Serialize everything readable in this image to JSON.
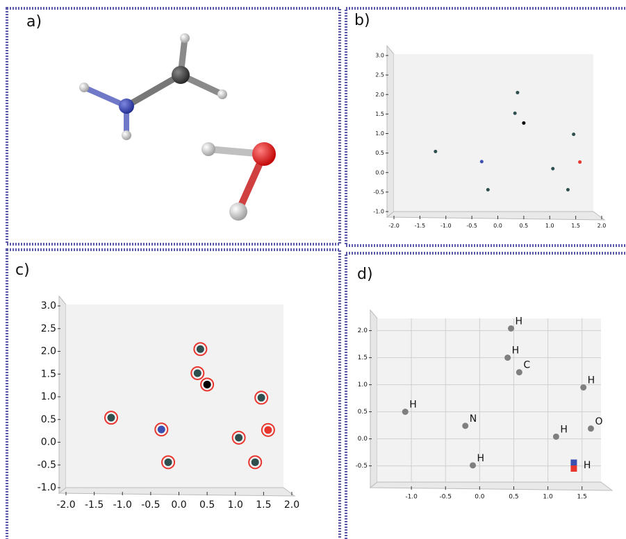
{
  "panels": [
    "a)",
    "b)",
    "c)",
    "d)"
  ],
  "chart_data": [
    {
      "type": "scatter",
      "x": [
        -1.2,
        -0.31,
        -0.19,
        0.38,
        0.33,
        0.5,
        1.46,
        1.06,
        1.58,
        1.35
      ],
      "y": [
        0.54,
        0.28,
        -0.44,
        2.05,
        1.52,
        1.27,
        0.98,
        0.1,
        0.27,
        -0.44
      ],
      "colors": [
        "#2f4f4f",
        "#3b4fb0",
        "#2f4f4f",
        "#2f4f4f",
        "#2f4f4f",
        "#000000",
        "#2f4f4f",
        "#2f4f4f",
        "#e8352e",
        "#2f4f4f"
      ],
      "xlim": [
        -2,
        2
      ],
      "ylim": [
        -1,
        3
      ],
      "xticks": [
        {
          "value": -2,
          "label": "-2.0"
        },
        {
          "value": -1.5,
          "label": "-1.5"
        },
        {
          "value": -1,
          "label": "-1.0"
        },
        {
          "value": -0.5,
          "label": "-0.5"
        },
        {
          "value": 0,
          "label": "0.0"
        },
        {
          "value": 0.5,
          "label": "0.5"
        },
        {
          "value": 1,
          "label": "1.0"
        },
        {
          "value": 1.5,
          "label": "1.5"
        },
        {
          "value": 2,
          "label": "2.0"
        }
      ],
      "yticks": [
        {
          "value": -1,
          "label": "-1.0"
        },
        {
          "value": -0.5,
          "label": "-0.5"
        },
        {
          "value": 0,
          "label": "0.0"
        },
        {
          "value": 0.5,
          "label": "0.5"
        },
        {
          "value": 1,
          "label": "1.0"
        },
        {
          "value": 1.5,
          "label": "1.5"
        },
        {
          "value": 2,
          "label": "2.0"
        },
        {
          "value": 2.5,
          "label": "2.5"
        },
        {
          "value": 3,
          "label": "3.0"
        }
      ],
      "grid": false
    },
    {
      "type": "scatter",
      "x": [
        -1.2,
        -0.31,
        -0.19,
        0.38,
        0.33,
        0.5,
        1.46,
        1.06,
        1.58,
        1.35
      ],
      "y": [
        0.54,
        0.28,
        -0.44,
        2.05,
        1.52,
        1.27,
        0.98,
        0.1,
        0.27,
        -0.44
      ],
      "colors": [
        "#2f4f4f",
        "#3b4fb0",
        "#2f4f4f",
        "#2f4f4f",
        "#2f4f4f",
        "#000000",
        "#2f4f4f",
        "#2f4f4f",
        "#e8352e",
        "#2f4f4f"
      ],
      "ring_color": "#e8352e",
      "xlim": [
        -2,
        2
      ],
      "ylim": [
        -1,
        3
      ],
      "xticks": [
        {
          "value": -2,
          "label": "-2.0"
        },
        {
          "value": -1.5,
          "label": "-1.5"
        },
        {
          "value": -1,
          "label": "-1.0"
        },
        {
          "value": -0.5,
          "label": "-0.5"
        },
        {
          "value": 0,
          "label": "0.0"
        },
        {
          "value": 0.5,
          "label": "0.5"
        },
        {
          "value": 1,
          "label": "1.0"
        },
        {
          "value": 1.5,
          "label": "1.5"
        },
        {
          "value": 2,
          "label": "2.0"
        }
      ],
      "yticks": [
        {
          "value": -1,
          "label": "-1.0"
        },
        {
          "value": -0.5,
          "label": "-0.5"
        },
        {
          "value": 0,
          "label": "0.0"
        },
        {
          "value": 0.5,
          "label": "0.5"
        },
        {
          "value": 1,
          "label": "1.0"
        },
        {
          "value": 1.5,
          "label": "1.5"
        },
        {
          "value": 2,
          "label": "2.0"
        },
        {
          "value": 2.5,
          "label": "2.5"
        },
        {
          "value": 3,
          "label": "3.0"
        }
      ],
      "grid": false
    },
    {
      "type": "scatter",
      "x": [
        0.46,
        0.41,
        0.58,
        1.52,
        -1.09,
        -0.21,
        1.12,
        1.63,
        -0.1
      ],
      "y": [
        2.04,
        1.5,
        1.23,
        0.95,
        0.5,
        0.24,
        0.04,
        0.19,
        -0.49
      ],
      "labels": [
        "H",
        "H",
        "C",
        "H",
        "H",
        "N",
        "H",
        "O",
        "H"
      ],
      "color": "#7f7f7f",
      "markers": {
        "x": [
          1.38,
          1.38
        ],
        "y": [
          -0.44,
          -0.55
        ],
        "colors": [
          "#3b4fb0",
          "#e8352e"
        ],
        "label": "H"
      },
      "xlim": [
        -1.5,
        1.9
      ],
      "ylim": [
        -0.8,
        2.2
      ],
      "xticks": [
        {
          "value": -1,
          "label": "-1.0"
        },
        {
          "value": -0.5,
          "label": "-0.5"
        },
        {
          "value": 0,
          "label": "0.0"
        },
        {
          "value": 0.5,
          "label": "0.5"
        },
        {
          "value": 1,
          "label": "1.0"
        },
        {
          "value": 1.5,
          "label": "1.5"
        }
      ],
      "yticks": [
        {
          "value": -0.5,
          "label": "-0.5"
        },
        {
          "value": 0,
          "label": "0.0"
        },
        {
          "value": 0.5,
          "label": "0.5"
        },
        {
          "value": 1,
          "label": "1.0"
        },
        {
          "value": 1.5,
          "label": "1.5"
        },
        {
          "value": 2,
          "label": "2.0"
        }
      ],
      "grid": true
    }
  ]
}
